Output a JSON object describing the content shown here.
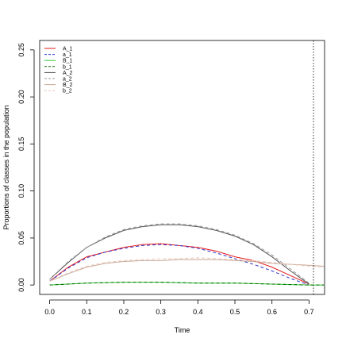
{
  "chart_data": {
    "type": "line",
    "title": "",
    "xlabel": "Time",
    "ylabel": "Proportions of classes in the population",
    "xlim": [
      -0.027,
      0.742
    ],
    "ylim": [
      -0.01,
      0.26
    ],
    "x_ticks": [
      "0.0",
      "0.1",
      "0.2",
      "0.3",
      "0.4",
      "0.5",
      "0.6",
      "0.7"
    ],
    "y_ticks": [
      "0.00",
      "0.05",
      "0.10",
      "0.15",
      "0.20",
      "0.25"
    ],
    "vline": 0.712,
    "grid": false,
    "legend_position": "top-left",
    "series": [
      {
        "name": "A_1",
        "color": "#e41a1c",
        "dash": "solid",
        "x": [
          0.0,
          0.05,
          0.1,
          0.15,
          0.2,
          0.25,
          0.3,
          0.35,
          0.4,
          0.45,
          0.5,
          0.55,
          0.6,
          0.65,
          0.7
        ],
        "y": [
          0.004,
          0.019,
          0.03,
          0.035,
          0.04,
          0.043,
          0.044,
          0.042,
          0.04,
          0.036,
          0.03,
          0.026,
          0.019,
          0.01,
          0.001
        ]
      },
      {
        "name": "a_1",
        "color": "#3333cc",
        "dash": "dashed",
        "x": [
          0.0,
          0.05,
          0.1,
          0.15,
          0.2,
          0.25,
          0.3,
          0.35,
          0.4,
          0.45,
          0.5,
          0.55,
          0.6,
          0.65,
          0.7
        ],
        "y": [
          0.004,
          0.018,
          0.029,
          0.035,
          0.039,
          0.042,
          0.043,
          0.042,
          0.039,
          0.034,
          0.028,
          0.022,
          0.015,
          0.007,
          0.0
        ]
      },
      {
        "name": "B_1",
        "color": "#33cc33",
        "dash": "solid",
        "x": [
          0.0,
          0.1,
          0.2,
          0.3,
          0.4,
          0.5,
          0.6,
          0.7,
          0.74
        ],
        "y": [
          0.0,
          0.002,
          0.003,
          0.003,
          0.002,
          0.002,
          0.001,
          0.0,
          0.0
        ]
      },
      {
        "name": "b_1",
        "color": "#006600",
        "dash": "dashed",
        "x": [
          0.0,
          0.1,
          0.2,
          0.3,
          0.4,
          0.5,
          0.6,
          0.7,
          0.74
        ],
        "y": [
          0.0,
          0.002,
          0.003,
          0.003,
          0.002,
          0.002,
          0.001,
          0.0,
          0.0
        ]
      },
      {
        "name": "A_2",
        "color": "#555555",
        "dash": "solid",
        "x": [
          0.0,
          0.05,
          0.1,
          0.15,
          0.2,
          0.25,
          0.3,
          0.35,
          0.4,
          0.45,
          0.5,
          0.55,
          0.6,
          0.65,
          0.7
        ],
        "y": [
          0.006,
          0.024,
          0.04,
          0.05,
          0.058,
          0.062,
          0.064,
          0.064,
          0.062,
          0.058,
          0.052,
          0.043,
          0.03,
          0.015,
          0.001
        ]
      },
      {
        "name": "a_2",
        "color": "#999999",
        "dash": "dashed",
        "x": [
          0.0,
          0.05,
          0.1,
          0.15,
          0.2,
          0.25,
          0.3,
          0.35,
          0.4,
          0.45,
          0.5,
          0.55,
          0.6,
          0.65,
          0.7
        ],
        "y": [
          0.006,
          0.025,
          0.04,
          0.051,
          0.059,
          0.063,
          0.065,
          0.065,
          0.063,
          0.059,
          0.053,
          0.044,
          0.032,
          0.017,
          0.002
        ]
      },
      {
        "name": "B_2",
        "color": "#c8a898",
        "dash": "solid",
        "x": [
          0.0,
          0.05,
          0.1,
          0.15,
          0.2,
          0.25,
          0.3,
          0.35,
          0.4,
          0.45,
          0.5,
          0.55,
          0.6,
          0.65,
          0.7,
          0.74
        ],
        "y": [
          0.004,
          0.012,
          0.019,
          0.023,
          0.025,
          0.026,
          0.026,
          0.027,
          0.027,
          0.027,
          0.026,
          0.025,
          0.023,
          0.022,
          0.021,
          0.02
        ]
      },
      {
        "name": "b_2",
        "color": "#e8c8b8",
        "dash": "dashed",
        "x": [
          0.0,
          0.05,
          0.1,
          0.15,
          0.2,
          0.25,
          0.3,
          0.35,
          0.4,
          0.45,
          0.5,
          0.55,
          0.6,
          0.65,
          0.7,
          0.74
        ],
        "y": [
          0.004,
          0.013,
          0.02,
          0.024,
          0.026,
          0.027,
          0.028,
          0.028,
          0.029,
          0.028,
          0.027,
          0.026,
          0.024,
          0.022,
          0.02,
          0.019
        ]
      }
    ]
  }
}
